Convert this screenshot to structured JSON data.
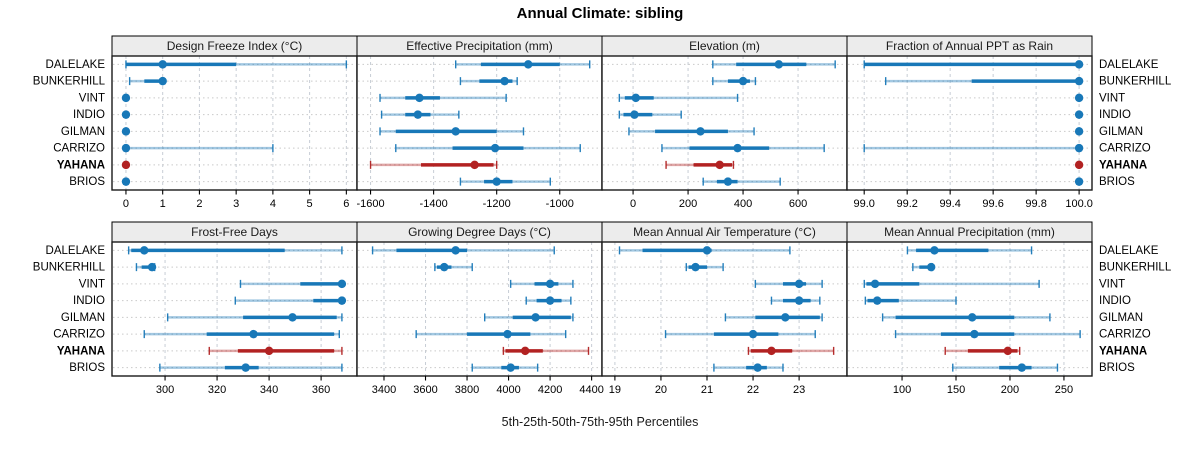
{
  "title": "Annual Climate: sibling",
  "caption": "5th-25th-50th-75th-95th Percentiles",
  "sites": [
    "DALELAKE",
    "BUNKERHILL",
    "VINT",
    "INDIO",
    "GILMAN",
    "CARRIZO",
    "YAHANA",
    "BRIOS"
  ],
  "highlight_site": "YAHANA",
  "colors": {
    "series_blue": "#1878b8",
    "highlight_red": "#b22222",
    "strip_bg": "#ececec",
    "panel_border": "#1a1a1a",
    "grid_dash": "#c7cdd5",
    "grid_dot": "#c9c9c9"
  },
  "chart_data": {
    "type": "dot-interval-trellis",
    "percentiles": [
      5,
      25,
      50,
      75,
      95
    ],
    "layout": {
      "rows": 2,
      "cols": 4,
      "legend_position": "none",
      "grid": true
    },
    "panels": [
      {
        "title": "Design Freeze Index (°C)",
        "ticks": [
          0,
          1,
          2,
          3,
          4,
          5,
          6
        ],
        "xlim": [
          -0.38,
          6.29
        ],
        "values": [
          [
            0,
            0,
            1,
            3,
            6
          ],
          [
            0.1,
            0.5,
            1,
            1,
            1
          ],
          [
            0,
            0,
            0,
            0,
            0
          ],
          [
            0,
            0,
            0,
            0,
            0
          ],
          [
            0,
            0,
            0,
            0,
            0
          ],
          [
            0,
            0,
            0,
            0,
            4
          ],
          [
            0,
            0,
            0,
            0,
            0
          ],
          [
            0,
            0,
            0,
            0,
            0
          ]
        ]
      },
      {
        "title": "Effective Precipitation (mm)",
        "ticks": [
          -1600,
          -1400,
          -1200,
          -1000
        ],
        "xlim": [
          -1643,
          -866
        ],
        "values": [
          [
            -1330,
            -1250,
            -1100,
            -1000,
            -905
          ],
          [
            -1315,
            -1255,
            -1175,
            -1150,
            -1135
          ],
          [
            -1570,
            -1490,
            -1445,
            -1380,
            -1170
          ],
          [
            -1565,
            -1490,
            -1450,
            -1410,
            -1320
          ],
          [
            -1570,
            -1520,
            -1330,
            -1200,
            -1115
          ],
          [
            -1520,
            -1340,
            -1205,
            -1115,
            -935
          ],
          [
            -1600,
            -1440,
            -1270,
            -1210,
            -1200
          ],
          [
            -1315,
            -1240,
            -1200,
            -1150,
            -1030
          ]
        ]
      },
      {
        "title": "Elevation (m)",
        "ticks": [
          0,
          200,
          400,
          600
        ],
        "xlim": [
          -113,
          778
        ],
        "values": [
          [
            290,
            375,
            530,
            630,
            735
          ],
          [
            290,
            345,
            400,
            425,
            445
          ],
          [
            -50,
            -30,
            10,
            75,
            380
          ],
          [
            -50,
            -35,
            5,
            70,
            175
          ],
          [
            -15,
            80,
            245,
            345,
            440
          ],
          [
            105,
            205,
            380,
            495,
            695
          ],
          [
            120,
            220,
            315,
            360,
            365
          ],
          [
            255,
            305,
            345,
            380,
            535
          ]
        ]
      },
      {
        "title": "Fraction of Annual PPT as Rain",
        "ticks": [
          99.0,
          99.2,
          99.4,
          99.6,
          99.8,
          100.0
        ],
        "tick_labels": [
          "99.0",
          "99.2",
          "99.4",
          "99.6",
          "99.8",
          "100.0"
        ],
        "xlim": [
          98.92,
          100.06
        ],
        "values": [
          [
            99.0,
            99.0,
            100,
            100,
            100
          ],
          [
            99.1,
            99.5,
            100,
            100,
            100
          ],
          [
            100,
            100,
            100,
            100,
            100
          ],
          [
            100,
            100,
            100,
            100,
            100
          ],
          [
            100,
            100,
            100,
            100,
            100
          ],
          [
            99.0,
            100,
            100,
            100,
            100
          ],
          [
            100,
            100,
            100,
            100,
            100
          ],
          [
            100,
            100,
            100,
            100,
            100
          ]
        ]
      },
      {
        "title": "Frost-Free Days",
        "ticks": [
          300,
          320,
          340,
          360
        ],
        "xlim": [
          279.6,
          373.8
        ],
        "values": [
          [
            286,
            287,
            292,
            346,
            368
          ],
          [
            289,
            291,
            295,
            295,
            296
          ],
          [
            329,
            352,
            368,
            368,
            368
          ],
          [
            327,
            357,
            368,
            368,
            368
          ],
          [
            301,
            330,
            349,
            366,
            368
          ],
          [
            292,
            316,
            334,
            365,
            367
          ],
          [
            317,
            328,
            340,
            365,
            368
          ],
          [
            298,
            323,
            331,
            336,
            368
          ]
        ]
      },
      {
        "title": "Growing Degree Days (°C)",
        "ticks": [
          3400,
          3600,
          3800,
          4000,
          4200,
          4400
        ],
        "xlim": [
          3270,
          4450
        ],
        "values": [
          [
            3345,
            3460,
            3745,
            3800,
            4220
          ],
          [
            3645,
            3655,
            3690,
            3725,
            3825
          ],
          [
            4010,
            4125,
            4200,
            4240,
            4310
          ],
          [
            4085,
            4135,
            4200,
            4255,
            4300
          ],
          [
            3885,
            4020,
            4130,
            4300,
            4310
          ],
          [
            3555,
            3800,
            3995,
            4105,
            4275
          ],
          [
            3975,
            3985,
            4080,
            4165,
            4385
          ],
          [
            3825,
            3965,
            4010,
            4050,
            4140
          ]
        ]
      },
      {
        "title": "Mean Annual Air Temperature (°C)",
        "ticks": [
          19,
          20,
          21,
          22,
          23
        ],
        "xlim": [
          18.72,
          24.04
        ],
        "values": [
          [
            19.1,
            19.6,
            21.0,
            21.1,
            22.8
          ],
          [
            20.55,
            20.6,
            20.75,
            21.0,
            21.35
          ],
          [
            22.05,
            22.65,
            23.0,
            23.15,
            23.5
          ],
          [
            22.4,
            22.65,
            23.0,
            23.25,
            23.45
          ],
          [
            21.4,
            22.05,
            22.7,
            23.45,
            23.5
          ],
          [
            20.1,
            21.15,
            22.0,
            22.55,
            23.35
          ],
          [
            21.9,
            21.95,
            22.4,
            22.85,
            23.75
          ],
          [
            21.15,
            21.85,
            22.1,
            22.3,
            22.65
          ]
        ]
      },
      {
        "title": "Mean Annual Precipitation (mm)",
        "ticks": [
          100,
          150,
          200,
          250
        ],
        "xlim": [
          49,
          276
        ],
        "values": [
          [
            105,
            113,
            130,
            180,
            220
          ],
          [
            110,
            116,
            127,
            127,
            128
          ],
          [
            65,
            67,
            75,
            116,
            227
          ],
          [
            66,
            68,
            77,
            97,
            150
          ],
          [
            82,
            94,
            165,
            204,
            237
          ],
          [
            94,
            136,
            167,
            204,
            265
          ],
          [
            140,
            161,
            198,
            207,
            209
          ],
          [
            147,
            190,
            211,
            220,
            244
          ]
        ]
      }
    ]
  }
}
